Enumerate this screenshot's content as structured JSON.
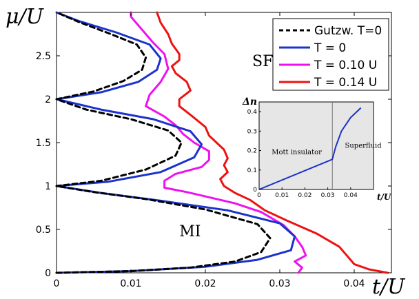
{
  "chart_data": [
    {
      "type": "line",
      "xlabel": "t/U",
      "ylabel": "μ/U",
      "xlim": [
        0,
        0.045
      ],
      "ylim": [
        0,
        3
      ],
      "xticks": [
        0,
        0.01,
        0.02,
        0.03,
        0.04
      ],
      "xtick_labels": [
        "0",
        "0.01",
        "0.02",
        "0.03",
        "0.04"
      ],
      "yticks": [
        0,
        0.5,
        1,
        1.5,
        2,
        2.5
      ],
      "ytick_labels": [
        "0",
        "0.5",
        "1",
        "1.5",
        "2",
        "2.5"
      ],
      "grid": false,
      "legend_position": "top-right",
      "annotations": [
        {
          "text": "SF",
          "x": 0.0263,
          "y": 2.38
        },
        {
          "text": "MI",
          "x": 0.0165,
          "y": 0.42
        }
      ],
      "series": [
        {
          "name": "Gutzw. T=0",
          "color": "#000000",
          "style": "dashed",
          "points": [
            [
              0,
              0
            ],
            [
              0.01,
              0.02
            ],
            [
              0.018,
              0.06
            ],
            [
              0.024,
              0.13
            ],
            [
              0.0275,
              0.24
            ],
            [
              0.0287,
              0.4
            ],
            [
              0.027,
              0.56
            ],
            [
              0.02,
              0.73
            ],
            [
              0.012,
              0.85
            ],
            [
              0.005,
              0.93
            ],
            [
              0,
              1
            ],
            [
              0.006,
              1.06
            ],
            [
              0.012,
              1.19
            ],
            [
              0.016,
              1.35
            ],
            [
              0.0168,
              1.5
            ],
            [
              0.015,
              1.64
            ],
            [
              0.01,
              1.77
            ],
            [
              0.004,
              1.88
            ],
            [
              0,
              2
            ],
            [
              0.005,
              2.09
            ],
            [
              0.009,
              2.21
            ],
            [
              0.0115,
              2.34
            ],
            [
              0.012,
              2.48
            ],
            [
              0.0108,
              2.63
            ],
            [
              0.007,
              2.76
            ],
            [
              0.003,
              2.89
            ],
            [
              0,
              3
            ]
          ]
        },
        {
          "name": "T = 0",
          "color": "#1a33cc",
          "style": "solid",
          "points": [
            [
              0,
              0
            ],
            [
              0.01,
              0.02
            ],
            [
              0.02,
              0.07
            ],
            [
              0.027,
              0.15
            ],
            [
              0.0315,
              0.26
            ],
            [
              0.032,
              0.42
            ],
            [
              0.03,
              0.57
            ],
            [
              0.023,
              0.72
            ],
            [
              0.014,
              0.83
            ],
            [
              0.006,
              0.92
            ],
            [
              0,
              1
            ],
            [
              0.007,
              1.05
            ],
            [
              0.014,
              1.16
            ],
            [
              0.0185,
              1.33
            ],
            [
              0.0195,
              1.48
            ],
            [
              0.018,
              1.63
            ],
            [
              0.013,
              1.77
            ],
            [
              0.006,
              1.88
            ],
            [
              0,
              2
            ],
            [
              0.006,
              2.08
            ],
            [
              0.011,
              2.2
            ],
            [
              0.0135,
              2.34
            ],
            [
              0.014,
              2.47
            ],
            [
              0.0125,
              2.63
            ],
            [
              0.008,
              2.77
            ],
            [
              0.003,
              2.9
            ],
            [
              0,
              3
            ]
          ]
        },
        {
          "name": "T = 0.10 U",
          "color": "#ee11ee",
          "style": "solid",
          "points": [
            [
              0.0325,
              0
            ],
            [
              0.033,
              0.06
            ],
            [
              0.032,
              0.13
            ],
            [
              0.0335,
              0.2
            ],
            [
              0.033,
              0.3
            ],
            [
              0.032,
              0.42
            ],
            [
              0.0305,
              0.55
            ],
            [
              0.0275,
              0.7
            ],
            [
              0.024,
              0.8
            ],
            [
              0.02,
              0.88
            ],
            [
              0.0175,
              0.93
            ],
            [
              0.0145,
              0.98
            ],
            [
              0.0145,
              1.06
            ],
            [
              0.016,
              1.14
            ],
            [
              0.0195,
              1.22
            ],
            [
              0.0205,
              1.3
            ],
            [
              0.0205,
              1.4
            ],
            [
              0.0185,
              1.5
            ],
            [
              0.017,
              1.6
            ],
            [
              0.016,
              1.7
            ],
            [
              0.0145,
              1.8
            ],
            [
              0.012,
              1.92
            ],
            [
              0.0125,
              2.05
            ],
            [
              0.014,
              2.2
            ],
            [
              0.015,
              2.35
            ],
            [
              0.0145,
              2.52
            ],
            [
              0.013,
              2.65
            ],
            [
              0.0115,
              2.8
            ],
            [
              0.01,
              2.95
            ],
            [
              0.01,
              3.0
            ]
          ]
        },
        {
          "name": "T = 0.14 U",
          "color": "#ee1111",
          "style": "solid",
          "points": [
            [
              0.0445,
              0
            ],
            [
              0.042,
              0.04
            ],
            [
              0.04,
              0.1
            ],
            [
              0.039,
              0.2
            ],
            [
              0.038,
              0.3
            ],
            [
              0.035,
              0.45
            ],
            [
              0.031,
              0.6
            ],
            [
              0.028,
              0.72
            ],
            [
              0.026,
              0.84
            ],
            [
              0.024,
              0.92
            ],
            [
              0.0225,
              1.0
            ],
            [
              0.022,
              1.08
            ],
            [
              0.023,
              1.16
            ],
            [
              0.0225,
              1.24
            ],
            [
              0.023,
              1.32
            ],
            [
              0.0225,
              1.42
            ],
            [
              0.0215,
              1.5
            ],
            [
              0.0205,
              1.58
            ],
            [
              0.02,
              1.68
            ],
            [
              0.019,
              1.75
            ],
            [
              0.018,
              1.82
            ],
            [
              0.0165,
              1.92
            ],
            [
              0.0165,
              2.0
            ],
            [
              0.018,
              2.1
            ],
            [
              0.0175,
              2.2
            ],
            [
              0.016,
              2.3
            ],
            [
              0.0155,
              2.38
            ],
            [
              0.0165,
              2.45
            ],
            [
              0.0165,
              2.52
            ],
            [
              0.0155,
              2.64
            ],
            [
              0.015,
              2.75
            ],
            [
              0.014,
              2.88
            ],
            [
              0.0135,
              3.0
            ]
          ]
        }
      ]
    },
    {
      "type": "line",
      "xlabel": "t/U",
      "ylabel": "Δn",
      "xlim": [
        0,
        0.05
      ],
      "ylim": [
        0,
        0.45
      ],
      "xticks": [
        0,
        0.01,
        0.02,
        0.03,
        0.04
      ],
      "xtick_labels": [
        "0",
        "0.01",
        "0.02",
        "0.03",
        "0.04"
      ],
      "yticks": [
        0,
        0.1,
        0.2,
        0.3,
        0.4
      ],
      "ytick_labels": [
        "0",
        "0.1",
        "0.2",
        "0.3",
        "0.4"
      ],
      "grid": false,
      "vline_x": 0.032,
      "annotations": [
        {
          "text": "Mott insulator",
          "x": 0.0055,
          "y": 0.18
        },
        {
          "text": "Superfluid",
          "x": 0.0375,
          "y": 0.215
        }
      ],
      "series": [
        {
          "color": "#1a33cc",
          "style": "solid",
          "points": [
            [
              0,
              0
            ],
            [
              0.032,
              0.155
            ],
            [
              0.0335,
              0.22
            ],
            [
              0.036,
              0.3
            ],
            [
              0.04,
              0.37
            ],
            [
              0.0445,
              0.42
            ]
          ]
        }
      ]
    }
  ]
}
